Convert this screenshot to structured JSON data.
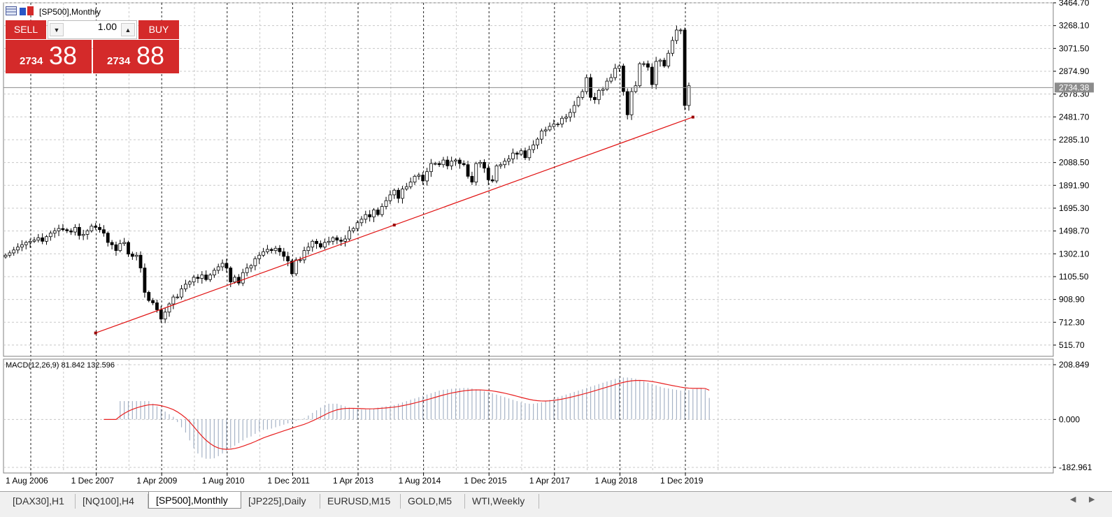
{
  "window": {
    "title": "[SP500],Monthly"
  },
  "trade_panel": {
    "sell_label": "SELL",
    "buy_label": "BUY",
    "lot_value": "1.00",
    "sell_price_small": "2734",
    "sell_price_big": "38",
    "buy_price_small": "2734",
    "buy_price_big": "88"
  },
  "colors": {
    "accent_red": "#d42a2a",
    "trend_line": "#e01010",
    "macd_signal": "#e82020",
    "macd_hist": "#a6b3c6"
  },
  "chart_data": [
    {
      "type": "candlestick",
      "title": "[SP500],Monthly",
      "ylim": [
        419,
        3464.7
      ],
      "y_ticks": [
        "3464.70",
        "3268.10",
        "3071.50",
        "2874.90",
        "2678.30",
        "2481.70",
        "2285.10",
        "2088.50",
        "1891.90",
        "1695.30",
        "1498.70",
        "1302.10",
        "1105.50",
        "908.90",
        "712.30",
        "515.70"
      ],
      "x_ticks": [
        "1 Aug 2006",
        "1 Dec 2007",
        "1 Apr 2009",
        "1 Aug 2010",
        "1 Dec 2011",
        "1 Apr 2013",
        "1 Aug 2014",
        "1 Dec 2015",
        "1 Apr 2017",
        "1 Aug 2018",
        "1 Dec 2019"
      ],
      "current_price": "2734.38",
      "grid": true,
      "trend_line": {
        "from": [
          "Jun 2008",
          620
        ],
        "mid": [
          "Jul 2014",
          1550
        ],
        "to": [
          "Apr 2020",
          2480
        ]
      },
      "series": [
        {
          "values": [
            1290,
            1310,
            1335,
            1360,
            1380,
            1400,
            1410,
            1420,
            1440,
            1410,
            1450,
            1480,
            1500,
            1520,
            1510,
            1500,
            1490,
            1530,
            1460,
            1470,
            1500,
            1540,
            1530,
            1510,
            1480,
            1400,
            1380,
            1330,
            1390,
            1400,
            1300,
            1280,
            1290,
            1180,
            970,
            900,
            880,
            820,
            740,
            800,
            870,
            930,
            930,
            1000,
            1040,
            1060,
            1100,
            1090,
            1120,
            1080,
            1120,
            1160,
            1190,
            1220,
            1180,
            1060,
            1100,
            1050,
            1140,
            1180,
            1200,
            1260,
            1290,
            1320,
            1340,
            1330,
            1350,
            1320,
            1280,
            1240,
            1130,
            1250,
            1250,
            1330,
            1360,
            1410,
            1390,
            1360,
            1400,
            1410,
            1440,
            1420,
            1410,
            1430,
            1500,
            1520,
            1570,
            1600,
            1640,
            1620,
            1680,
            1640,
            1710,
            1760,
            1810,
            1850,
            1780,
            1860,
            1880,
            1920,
            1970,
            1980,
            1930,
            2010,
            2080,
            2080,
            2070,
            2110,
            2060,
            2100,
            2110,
            2080,
            2070,
            1970,
            1920,
            2080,
            2090,
            2040,
            1940,
            1930,
            2060,
            2070,
            2100,
            2120,
            2170,
            2160,
            2190,
            2130,
            2200,
            2240,
            2290,
            2360,
            2370,
            2400,
            2420,
            2420,
            2470,
            2480,
            2520,
            2580,
            2650,
            2700,
            2820,
            2650,
            2630,
            2710,
            2720,
            2790,
            2820,
            2900,
            2920,
            2700,
            2500,
            2700,
            2750,
            2940,
            2940,
            2910,
            2760,
            2960,
            2970,
            2920,
            3030,
            3140,
            3230,
            3230,
            2580,
            2750
          ],
          "name": ""
        }
      ]
    },
    {
      "type": "bar",
      "title": "MACD(12,26,9) 81.842 132.596",
      "ylim": [
        -182.961,
        208.849
      ],
      "y_ticks": [
        "208.849",
        "0.000",
        "-182.961"
      ],
      "series": [
        {
          "name": "",
          "values": [
            0,
            0,
            0,
            0,
            0,
            0,
            0,
            0,
            0,
            0,
            0,
            0,
            0,
            0,
            0,
            0,
            0,
            0,
            0,
            0,
            0,
            0,
            0,
            0,
            0,
            0,
            0,
            0,
            70,
            70,
            70,
            70,
            70,
            70,
            70,
            70,
            60,
            50,
            40,
            30,
            20,
            10,
            -10,
            -30,
            -50,
            -80,
            -110,
            -130,
            -145,
            -150,
            -150,
            -148,
            -140,
            -130,
            -120,
            -110,
            -100,
            -90,
            -80,
            -70,
            -65,
            -55,
            -45,
            -40,
            -38,
            -35,
            -30,
            -25,
            -20,
            -15,
            -10,
            -5,
            -2,
            5,
            15,
            25,
            35,
            45,
            55,
            60,
            60,
            60,
            55,
            50,
            45,
            42,
            40,
            38,
            38,
            40,
            42,
            45,
            48,
            50,
            52,
            55,
            60,
            65,
            70,
            75,
            80,
            85,
            90,
            95,
            100,
            105,
            110,
            113,
            115,
            117,
            118,
            119,
            120,
            120,
            118,
            115,
            112,
            108,
            105,
            100,
            95,
            90,
            85,
            80,
            75,
            70,
            65,
            62,
            60,
            60,
            62,
            65,
            70,
            75,
            80,
            85,
            90,
            95,
            100,
            105,
            110,
            115,
            120,
            125,
            130,
            135,
            140,
            145,
            150,
            155,
            158,
            160,
            160,
            158,
            155,
            150,
            145,
            140,
            135,
            130,
            125,
            120,
            118,
            115,
            113,
            110,
            110,
            112,
            115,
            118,
            120,
            115,
            82
          ]
        },
        {
          "name": "",
          "values": [
            null,
            null,
            null,
            null,
            null,
            null,
            null,
            null,
            null,
            null,
            null,
            null,
            null,
            null,
            null,
            null,
            null,
            null,
            null,
            null,
            null,
            null,
            null,
            null,
            null,
            null,
            null,
            null,
            null,
            null,
            null,
            null,
            null,
            null,
            null,
            null,
            null,
            null,
            null,
            null,
            null,
            null,
            null,
            null,
            null,
            null,
            null,
            null,
            null,
            null,
            null,
            null,
            null,
            null,
            null,
            null,
            null,
            null,
            null,
            null,
            null,
            null,
            null,
            null,
            null,
            null,
            null,
            null,
            null,
            null,
            null,
            null,
            null,
            null,
            null,
            null,
            null,
            null,
            null,
            null,
            null,
            null,
            null,
            null,
            null,
            null,
            null,
            null,
            null,
            null,
            null,
            null,
            null,
            null,
            null,
            null,
            null,
            null,
            null,
            null,
            null,
            null,
            null,
            null,
            null,
            null,
            null,
            null,
            null,
            null,
            null,
            null,
            null,
            null,
            null,
            null,
            null,
            null,
            null,
            null,
            null,
            null,
            null,
            null,
            null,
            null,
            null,
            null,
            null,
            null,
            null,
            null,
            null,
            null,
            null,
            null,
            null,
            null,
            null,
            null,
            null,
            null,
            null,
            null,
            null,
            null,
            null,
            null,
            null,
            null,
            null,
            null,
            null,
            null,
            null,
            null,
            null,
            null,
            null,
            null,
            null,
            null,
            null,
            null,
            null,
            null,
            null,
            null,
            null,
            null,
            null,
            null,
            null,
            null,
            null,
            null,
            null
          ]
        }
      ]
    }
  ],
  "tabs": [
    {
      "label": "[DAX30],H1"
    },
    {
      "label": "[NQ100],H4"
    },
    {
      "label": "[SP500],Monthly",
      "active": true
    },
    {
      "label": "[JP225],Daily"
    },
    {
      "label": "EURUSD,M15"
    },
    {
      "label": "GOLD,M5"
    },
    {
      "label": "WTI,Weekly"
    }
  ]
}
